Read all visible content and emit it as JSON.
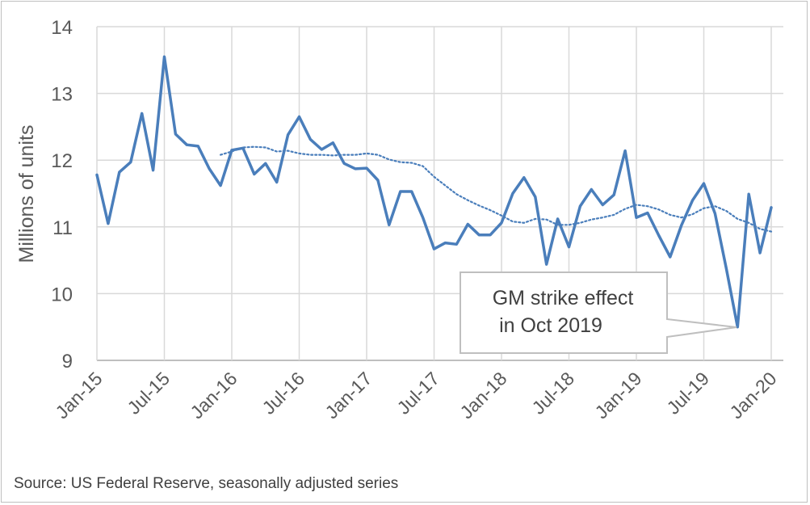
{
  "chart_data": {
    "type": "line",
    "title": "",
    "xlabel": "",
    "ylabel": "Millions of units",
    "ylim": [
      9,
      14
    ],
    "yticks": [
      9,
      10,
      11,
      12,
      13,
      14
    ],
    "xtick_labels": [
      "Jan-15",
      "Jul-15",
      "Jan-16",
      "Jul-16",
      "Jan-17",
      "Jul-17",
      "Jan-18",
      "Jul-18",
      "Jan-19",
      "Jul-19",
      "Jan-20"
    ],
    "grid": "horizontal",
    "legend": "none",
    "series": [
      {
        "style": "solid",
        "color": "#4a7ebb",
        "x": [
          "2015-01",
          "2015-02",
          "2015-03",
          "2015-04",
          "2015-05",
          "2015-06",
          "2015-07",
          "2015-08",
          "2015-09",
          "2015-10",
          "2015-11",
          "2015-12",
          "2016-01",
          "2016-02",
          "2016-03",
          "2016-04",
          "2016-05",
          "2016-06",
          "2016-07",
          "2016-08",
          "2016-09",
          "2016-10",
          "2016-11",
          "2016-12",
          "2017-01",
          "2017-02",
          "2017-03",
          "2017-04",
          "2017-05",
          "2017-06",
          "2017-07",
          "2017-08",
          "2017-09",
          "2017-10",
          "2017-11",
          "2017-12",
          "2018-01",
          "2018-02",
          "2018-03",
          "2018-04",
          "2018-05",
          "2018-06",
          "2018-07",
          "2018-08",
          "2018-09",
          "2018-10",
          "2018-11",
          "2018-12",
          "2019-01",
          "2019-02",
          "2019-03",
          "2019-04",
          "2019-05",
          "2019-06",
          "2019-07",
          "2019-08",
          "2019-09",
          "2019-10",
          "2019-11",
          "2019-12",
          "2020-01"
        ],
        "values": [
          11.78,
          11.05,
          11.82,
          11.97,
          12.7,
          11.85,
          13.55,
          12.39,
          12.23,
          12.21,
          11.87,
          11.62,
          12.15,
          12.18,
          11.79,
          11.95,
          11.67,
          12.38,
          12.65,
          12.31,
          12.16,
          12.26,
          11.95,
          11.87,
          11.88,
          11.7,
          11.03,
          11.53,
          11.53,
          11.14,
          10.67,
          10.76,
          10.74,
          11.04,
          10.88,
          10.88,
          11.06,
          11.5,
          11.74,
          11.45,
          10.44,
          11.12,
          10.7,
          11.31,
          11.56,
          11.33,
          11.48,
          12.14,
          11.14,
          11.21,
          10.87,
          10.55,
          11.02,
          11.4,
          11.65,
          11.2,
          10.38,
          9.5,
          11.49,
          10.61,
          11.29
        ]
      },
      {
        "style": "dotted",
        "color": "#4a7ebb",
        "x": [
          "2015-12",
          "2016-01",
          "2016-02",
          "2016-03",
          "2016-04",
          "2016-05",
          "2016-06",
          "2016-07",
          "2016-08",
          "2016-09",
          "2016-10",
          "2016-11",
          "2016-12",
          "2017-01",
          "2017-02",
          "2017-03",
          "2017-04",
          "2017-05",
          "2017-06",
          "2017-07",
          "2017-08",
          "2017-09",
          "2017-10",
          "2017-11",
          "2017-12",
          "2018-01",
          "2018-02",
          "2018-03",
          "2018-04",
          "2018-05",
          "2018-06",
          "2018-07",
          "2018-08",
          "2018-09",
          "2018-10",
          "2018-11",
          "2018-12",
          "2019-01",
          "2019-02",
          "2019-03",
          "2019-04",
          "2019-05",
          "2019-06",
          "2019-07",
          "2019-08",
          "2019-09",
          "2019-10",
          "2019-11",
          "2019-12",
          "2020-01"
        ],
        "values": [
          12.08,
          12.13,
          12.19,
          12.2,
          12.19,
          12.13,
          12.14,
          12.1,
          12.08,
          12.08,
          12.07,
          12.08,
          12.08,
          12.1,
          12.08,
          12.01,
          11.97,
          11.96,
          11.91,
          11.75,
          11.62,
          11.49,
          11.4,
          11.32,
          11.25,
          11.17,
          11.08,
          11.06,
          11.12,
          11.11,
          11.03,
          11.03,
          11.06,
          11.11,
          11.14,
          11.18,
          11.27,
          11.33,
          11.31,
          11.26,
          11.18,
          11.14,
          11.19,
          11.28,
          11.31,
          11.24,
          11.12,
          11.06,
          10.97,
          10.93
        ]
      }
    ],
    "annotations": [
      {
        "text_lines": [
          "GM strike effect",
          "in Oct 2019"
        ],
        "points_to": {
          "x": "2019-10",
          "y": 9.5
        }
      }
    ]
  },
  "source": "Source: US Federal Reserve, seasonally adjusted series"
}
